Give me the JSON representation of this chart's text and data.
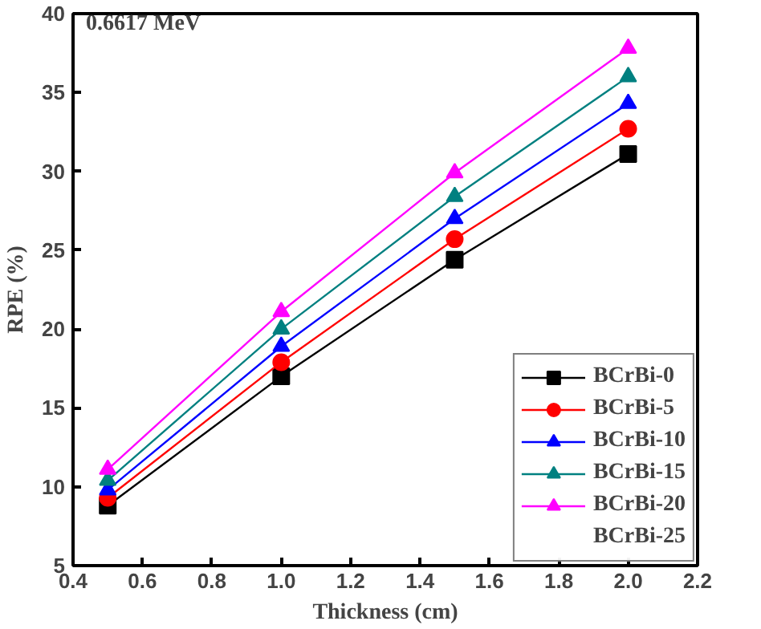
{
  "chart_data": {
    "type": "line",
    "xlabel": "Thickness (cm)",
    "ylabel": "RPE (%)",
    "annotations": [
      "0.6617 MeV"
    ],
    "x": [
      0.5,
      1.0,
      1.5,
      2.0
    ],
    "xlim": [
      0.4,
      2.2
    ],
    "xticks": [
      0.4,
      0.6,
      0.8,
      {
        "value": 1,
        "label": "1.0"
      },
      1.2,
      1.4,
      1.6,
      1.8,
      {
        "value": 2,
        "label": "2.0"
      },
      2.2
    ],
    "ylim": [
      5,
      40
    ],
    "yticks": [
      5,
      10,
      15,
      20,
      25,
      30,
      35,
      40
    ],
    "grid": false,
    "legend": "bottom right",
    "line_style": "solid",
    "series": [
      {
        "name": "BCrBi-0",
        "color": "#000000",
        "marker": "square",
        "values": [
          8.8,
          17.0,
          24.4,
          31.1
        ]
      },
      {
        "name": "BCrBi-5",
        "color": "#ff0000",
        "marker": "circle",
        "values": [
          9.3,
          17.9,
          25.7,
          32.7
        ]
      },
      {
        "name": "BCrBi-10",
        "color": "#0000ff",
        "marker": "triangle",
        "values": [
          9.8,
          18.9,
          27.0,
          34.3
        ]
      },
      {
        "name": "BCrBi-15",
        "color": "#008080",
        "marker": "triangle",
        "values": [
          10.4,
          20.0,
          28.4,
          36.0
        ]
      },
      {
        "name": "BCrBi-20",
        "color": "#ff00ff",
        "marker": "triangle",
        "values": [
          11.1,
          21.1,
          29.9,
          37.8
        ]
      },
      {
        "name": "BCrBi-25",
        "color": null,
        "marker": "none",
        "values": [
          null,
          null,
          null,
          null
        ]
      }
    ]
  }
}
